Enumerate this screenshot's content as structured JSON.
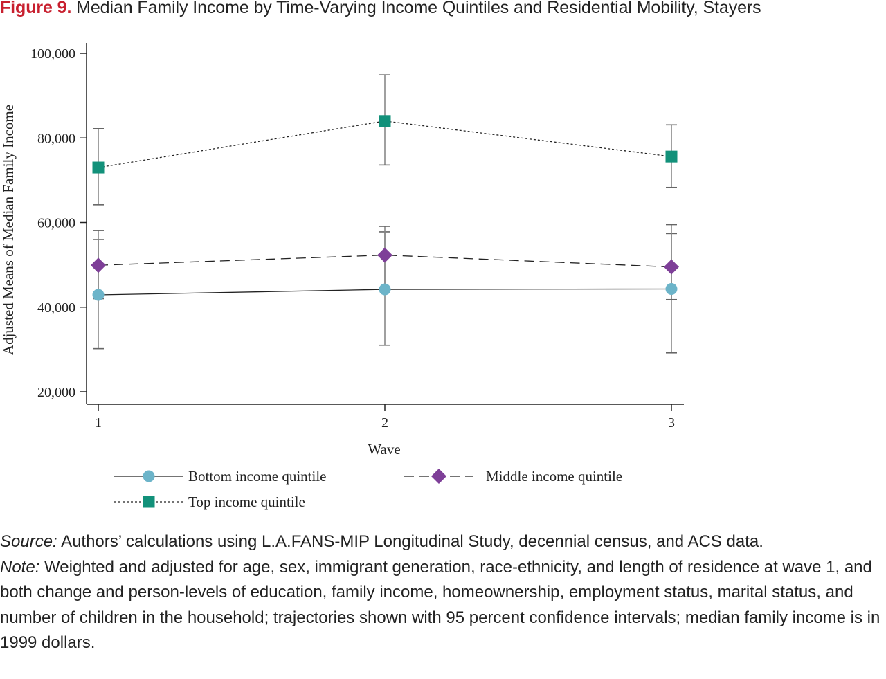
{
  "figure": {
    "label": "Figure 9.",
    "title": "Median Family Income by Time-Varying Income Quintiles and Residential Mobility, Stayers"
  },
  "chart_data": {
    "type": "line",
    "xlabel": "Wave",
    "ylabel": "Adjusted Means of Median Family Income",
    "x": [
      1,
      2,
      3
    ],
    "x_ticks": [
      "1",
      "2",
      "3"
    ],
    "ylim": [
      20000,
      100000
    ],
    "y_ticks": [
      "20,000",
      "40,000",
      "60,000",
      "80,000",
      "100,000"
    ],
    "error_bars": "95 percent confidence intervals",
    "grid": false,
    "legend_position": "bottom",
    "series": [
      {
        "name": "Bottom income quintile",
        "values": [
          42900,
          44200,
          44300
        ],
        "ci_low": [
          30200,
          31000,
          29200
        ],
        "ci_high": [
          56000,
          57800,
          57400
        ],
        "color": "#6cb4c9",
        "marker": "circle",
        "line_style": "solid"
      },
      {
        "name": "Middle income quintile",
        "values": [
          49900,
          52300,
          49500
        ],
        "ci_low": [
          42000,
          44500,
          41800
        ],
        "ci_high": [
          58100,
          59100,
          59500
        ],
        "color": "#7e3f98",
        "marker": "diamond",
        "line_style": "dashed"
      },
      {
        "name": "Top income quintile",
        "values": [
          73000,
          84000,
          75600
        ],
        "ci_low": [
          64200,
          73600,
          68300
        ],
        "ci_high": [
          82200,
          94900,
          83100
        ],
        "color": "#12917a",
        "marker": "square",
        "line_style": "dotted"
      }
    ]
  },
  "source": {
    "label": "Source:",
    "text": " Authors’ calculations using L.A.FANS-MIP Longitudinal Study, decennial census, and ACS data."
  },
  "note": {
    "label": "Note:",
    "text": " Weighted and adjusted for age, sex, immigrant generation, race-ethnicity, and length of residence at wave 1, and both change and person-levels of education, family income, homeownership, employment status, marital status, and number of children in the household; trajectories shown with 95 percent confidence intervals; median family income is in 1999 dollars."
  }
}
